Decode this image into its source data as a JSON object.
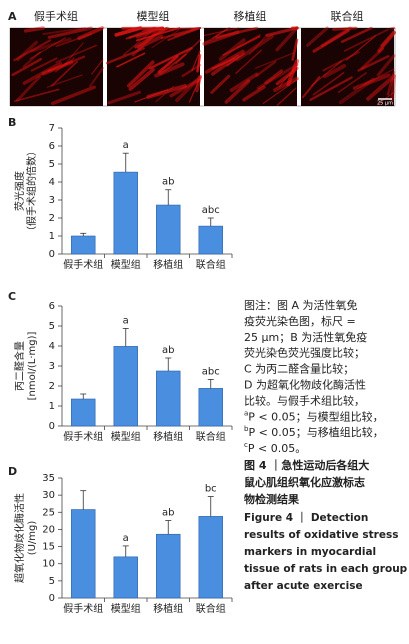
{
  "panel_a": {
    "label": "A",
    "titles": [
      "假手术组",
      "模型组",
      "移植组",
      "联合组"
    ],
    "scale_bar": "25 μm"
  },
  "chart_data": [
    {
      "type": "bar",
      "panel": "B",
      "ylabel_lines": [
        "荧光强度",
        "（假手术组的倍数）"
      ],
      "categories": [
        "假手术组",
        "模型组",
        "移植组",
        "联合组"
      ],
      "values": [
        1.0,
        4.55,
        2.72,
        1.55
      ],
      "errors": [
        0.15,
        1.05,
        0.85,
        0.45
      ],
      "annotations": [
        null,
        "a",
        "ab",
        "abc"
      ],
      "color": "#4a8ee0",
      "ylim": [
        0,
        7
      ],
      "yticks": [
        0,
        1,
        2,
        3,
        4,
        5,
        6,
        7
      ]
    },
    {
      "type": "bar",
      "panel": "C",
      "ylabel_lines": [
        "丙二醛含量",
        "[nmol/(L·mg)]"
      ],
      "categories": [
        "假手术组",
        "模型组",
        "移植组",
        "联合组"
      ],
      "values": [
        1.35,
        3.98,
        2.75,
        1.88
      ],
      "errors": [
        0.25,
        0.9,
        0.65,
        0.45
      ],
      "annotations": [
        null,
        "a",
        "ab",
        "abc"
      ],
      "color": "#4a8ee0",
      "ylim": [
        0,
        6
      ],
      "yticks": [
        0,
        1,
        2,
        3,
        4,
        5,
        6
      ]
    },
    {
      "type": "bar",
      "panel": "D",
      "ylabel_lines": [
        "超氧化物歧化酶活性",
        "(U/mg)"
      ],
      "categories": [
        "假手术组",
        "模型组",
        "移植组",
        "联合组"
      ],
      "values": [
        25.8,
        12.0,
        18.6,
        23.8
      ],
      "errors": [
        5.5,
        3.2,
        4.0,
        5.8
      ],
      "annotations": [
        null,
        "a",
        "ab",
        "bc"
      ],
      "color": "#4a8ee0",
      "ylim": [
        0,
        35
      ],
      "yticks": [
        0,
        5,
        10,
        15,
        20,
        25,
        30,
        35
      ]
    }
  ],
  "note_lines": [
    {
      "text": "图注：图 A 为活性氧免"
    },
    {
      "text": "疫荧光染色图，标尺 ="
    },
    {
      "text": "25 μm；B 为活性氧免疫"
    },
    {
      "text": "荧光染色荧光强度比较；"
    },
    {
      "text": "C 为丙二醛含量比较；"
    },
    {
      "text": "D 为超氧化物歧化酶活性"
    },
    {
      "text": "比较。与假手术组比较，"
    },
    {
      "sup": "a",
      "text": "P < 0.05；与模型组比较，"
    },
    {
      "sup": "b",
      "text": "P < 0.05；与移植组比较，"
    },
    {
      "sup": "c",
      "text": "P < 0.05。"
    }
  ],
  "figure_title_lines": [
    "图 4 ｜急性运动后各组大",
    "鼠心肌组织氧化应激标志",
    "物检测结果"
  ],
  "figure_title_en_lines": [
    "Figure 4 ｜ Detection",
    "results of oxidative stress",
    "markers in myocardial",
    "tissue of rats in each group",
    "after acute exercise"
  ]
}
